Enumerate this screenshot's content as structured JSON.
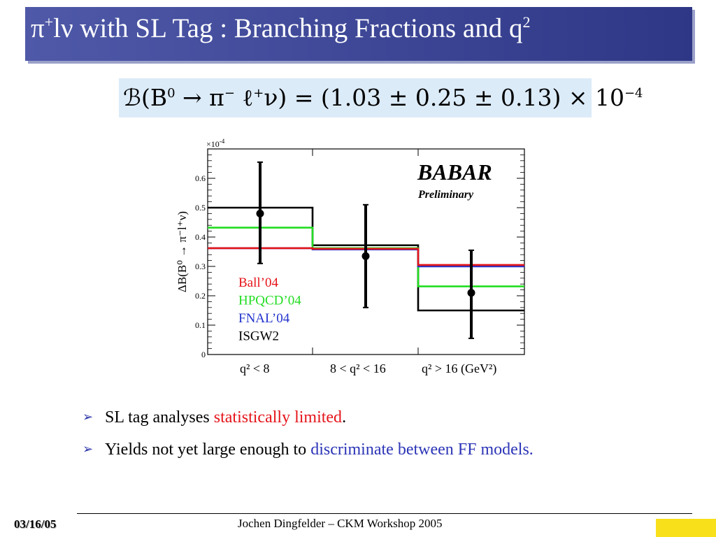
{
  "slide": {
    "title": {
      "prefix": "π",
      "prefix_sup": "+",
      "rest": "lν with SL Tag :  Branching Fractions and q",
      "rest_sup": "2"
    },
    "formula": {
      "part1": "ℬ(B",
      "sup1": "0",
      "part2": " → π",
      "sup2": "−",
      "part3": " ℓ",
      "sup3": "+",
      "part4": "ν) = (1.03 ± 0.25 ± 0.13) × 10",
      "sup4": "−4"
    },
    "bullets": [
      {
        "before": "SL tag analyses ",
        "highlight": "statistically limited",
        "after": "."
      },
      {
        "before": "Yields not yet large enough to ",
        "highlight": "discriminate between FF models.",
        "after": ""
      }
    ],
    "footer": {
      "date": "03/16/05",
      "author": "Jochen Dingfelder –  CKM Workshop 2005"
    }
  },
  "chart_data": {
    "type": "histogram-step",
    "ylabel": "ΔB(B⁰ → π⁻l⁺ν)",
    "exponent_label": "×10",
    "exponent_sup": "-4",
    "ylim": [
      0,
      0.7
    ],
    "y_ticks": [
      0,
      0.1,
      0.2,
      0.3,
      0.4,
      0.5,
      0.6
    ],
    "y_tick_labels": [
      "0",
      "0.1",
      "0.2",
      "0.3",
      "0.4",
      "0.5",
      "0.6"
    ],
    "categories": [
      "q² < 8",
      "8 < q² < 16",
      "q² > 16 (GeV²)"
    ],
    "data": {
      "values": [
        0.48,
        0.335,
        0.21
      ],
      "err_low": [
        0.17,
        0.175,
        0.155
      ],
      "err_high": [
        0.175,
        0.175,
        0.145
      ]
    },
    "series": [
      {
        "name": "Ball’04",
        "color": "#e5141a",
        "values": [
          0.362,
          0.36,
          0.305
        ]
      },
      {
        "name": "HPQCD’04",
        "color": "#22dd22",
        "values": [
          0.432,
          0.362,
          0.232
        ]
      },
      {
        "name": "FNAL’04",
        "color": "#2233cc",
        "values": [
          0.362,
          0.358,
          0.3
        ]
      },
      {
        "name": "ISGW2",
        "color": "#000000",
        "values": [
          0.5,
          0.372,
          0.15
        ]
      }
    ],
    "logo": {
      "main": "BABAR",
      "sub": "Preliminary"
    }
  }
}
